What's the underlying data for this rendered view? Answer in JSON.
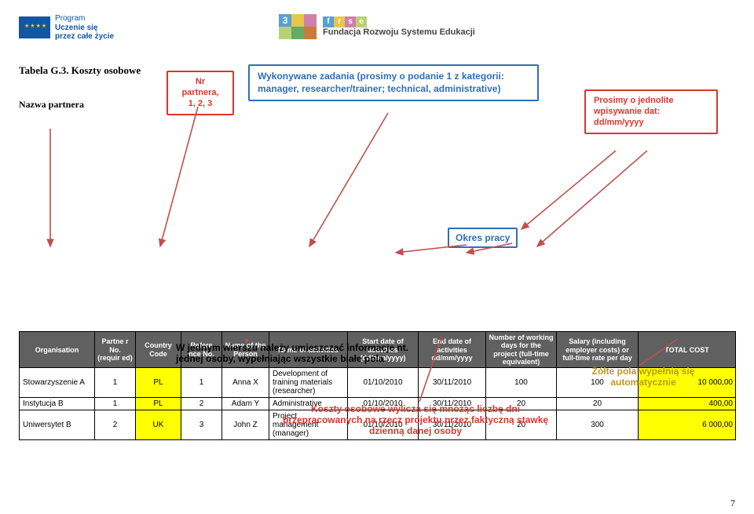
{
  "header": {
    "program_line1": "Program",
    "program_line2": "Uczenie się",
    "program_line3": "przez całe życie",
    "frse_letters": [
      "f",
      "r",
      "s",
      "e"
    ],
    "frse_name": "Fundacja Rozwoju Systemu Edukacji"
  },
  "title": "Tabela G.3. Koszty osobowe",
  "partner_label": "Nazwa partnera",
  "callouts": {
    "nr_partnera": "Nr partnera,\n1, 2, 3",
    "wykonywane": "Wykonywane zadania (prosimy o podanie 1 z kategorii: manager, researcher/trainer; technical, administrative)",
    "okres": "Okres pracy",
    "prosimy": "Prosimy o jednolite wpisywanie dat: dd/mm/yyyy"
  },
  "table": {
    "headers": [
      "Organisation",
      "Partne r No. (requir ed)",
      "Country Code",
      "Refere nce No.",
      "Name of the Person",
      "Name of activities",
      "Start date of activities\n(dd/mm/yyyy)",
      "End date of activities dd/mm/yyyy",
      "Number of working days for the project (full-time equivalent)",
      "Salary (including employer costs) or full-time rate per day",
      "TOTAL COST"
    ],
    "rows": [
      {
        "org": "Stowarzyszenie A",
        "pno": "1",
        "cc": "PL",
        "ref": "1",
        "person": "Anna X",
        "act": "Development of training materials (researcher)",
        "start": "01/10/2010",
        "end": "30/11/2010",
        "days": "100",
        "rate": "100",
        "total": "10 000,00"
      },
      {
        "org": "Instytucja B",
        "pno": "1",
        "cc": "PL",
        "ref": "2",
        "person": "Adam Y",
        "act": "Administrative",
        "start": "01/10/2010",
        "end": "30/11/2010",
        "days": "20",
        "rate": "20",
        "total": "400,00"
      },
      {
        "org": "Uniwersytet B",
        "pno": "2",
        "cc": "UK",
        "ref": "3",
        "person": "John Z",
        "act": "Project management (manager)",
        "start": "01/10/2010",
        "end": "30/11/2010",
        "days": "20",
        "rate": "300",
        "total": "6 000,00"
      }
    ]
  },
  "notes": {
    "black": "W jednym wierszu należy umieszczać informacje nt. jednej osoby, wypełniając wszystkie białe pola",
    "red": "Koszty osobowe wylicza się mnożąc liczbę dni przepracowanych na rzecz projektu przez faktyczną stawkę dzienną danej osoby",
    "yellow": "Żółte pola wypełnią się automatycznie"
  },
  "page_number": "7",
  "arrow_color": "#c0504d"
}
